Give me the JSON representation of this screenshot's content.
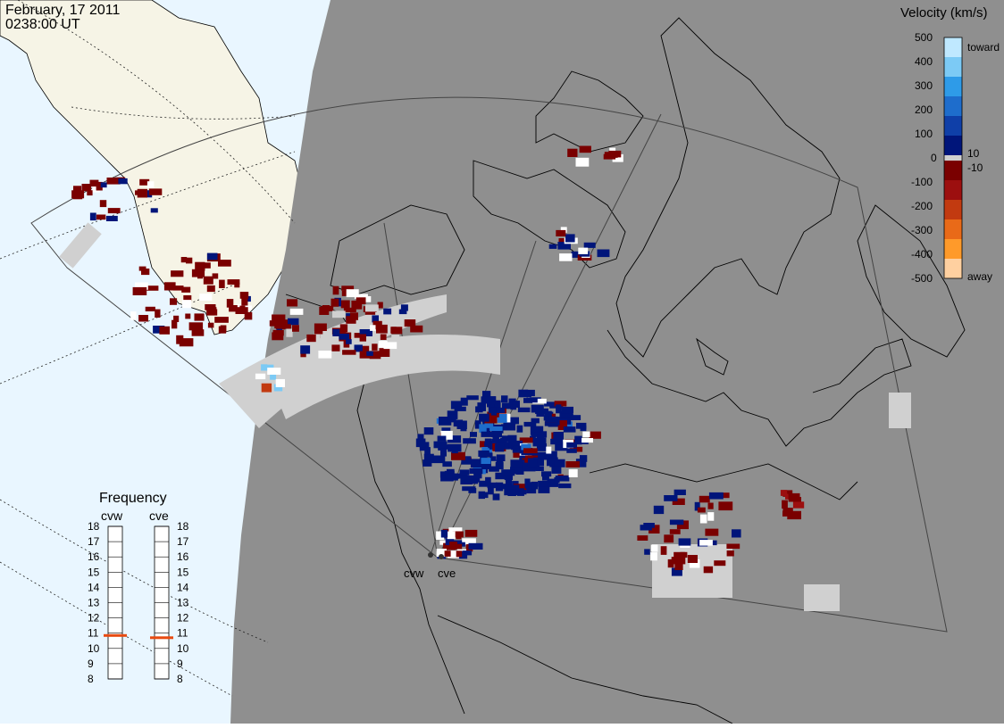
{
  "header": {
    "date": "February, 17 2011",
    "time": "0238:00 UT"
  },
  "colorbar": {
    "title": "Velocity (km/s)",
    "ticks": [
      "500",
      "400",
      "300",
      "200",
      "100",
      "0",
      "-100",
      "-200",
      "-300",
      "-400",
      "-500"
    ],
    "inner_ticks": [
      "10",
      "-10"
    ],
    "label_toward": "toward",
    "label_away": "away",
    "colors": [
      "#bfe8ff",
      "#7ccaf5",
      "#2e9be8",
      "#1e6dcc",
      "#0f3fa8",
      "#00157a",
      "#7a0000",
      "#9c0f0f",
      "#c23a10",
      "#e96a18",
      "#ff9a2a",
      "#ffd0a0"
    ]
  },
  "frequency": {
    "title": "Frequency",
    "radars": [
      {
        "name": "cvw",
        "frequency_mhz": 10.85
      },
      {
        "name": "cve",
        "frequency_mhz": 10.7
      }
    ],
    "scale": [
      "18",
      "17",
      "16",
      "15",
      "14",
      "13",
      "12",
      "11",
      "10",
      "9",
      "8"
    ],
    "indicator_color": "#e84a10"
  },
  "radar_sites": [
    "cvw",
    "cve"
  ],
  "colors": {
    "background_ocean": "#e9f6ff",
    "land_day": "#f6f4e6",
    "night_shade": "#8f8f8f",
    "ground_scatter": "#d0d0d0",
    "fov_outline": "#444444"
  }
}
